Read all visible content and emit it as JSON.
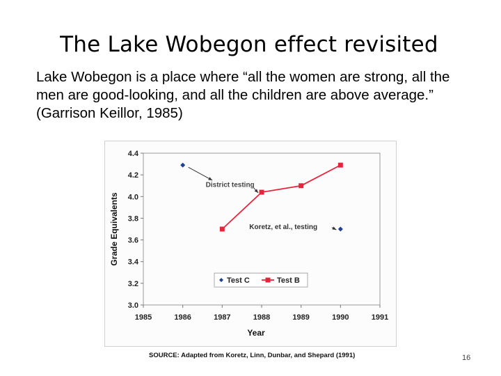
{
  "slide": {
    "title": "The Lake Wobegon effect revisited",
    "body": "Lake Wobegon is a place where “all the women are strong, all the men are good-looking, and all the children are above average.” (Garrison Keillor, 1985)",
    "page_number": "16"
  },
  "chart_data": {
    "type": "line",
    "title": "",
    "xlabel": "Year",
    "ylabel": "Grade Equivalents",
    "x_ticks": [
      "1985",
      "1986",
      "1987",
      "1988",
      "1989",
      "1990",
      "1991"
    ],
    "y_ticks": [
      "3.0",
      "3.2",
      "3.4",
      "3.6",
      "3.8",
      "4.0",
      "4.2",
      "4.4"
    ],
    "xlim": [
      1985,
      1991
    ],
    "ylim": [
      3.0,
      4.4
    ],
    "grid": false,
    "legend_position": "bottom-center",
    "series": [
      {
        "name": "Test C",
        "color": "#1f3f8f",
        "marker": "diamond",
        "line": false,
        "points": [
          {
            "x": 1986,
            "y": 4.29
          },
          {
            "x": 1990,
            "y": 3.7
          }
        ]
      },
      {
        "name": "Test B",
        "color": "#e8243c",
        "marker": "square",
        "line": true,
        "points": [
          {
            "x": 1987,
            "y": 3.7
          },
          {
            "x": 1988,
            "y": 4.04
          },
          {
            "x": 1989,
            "y": 4.1
          },
          {
            "x": 1990,
            "y": 4.29
          }
        ]
      }
    ],
    "annotations": [
      {
        "text": "District testing",
        "points_to": {
          "x": 1988,
          "y": 4.04
        }
      },
      {
        "text": "Koretz, et al., testing",
        "points_to": {
          "x": 1990,
          "y": 3.7
        }
      }
    ],
    "source": "SOURCE: Adapted from Koretz, Linn, Dunbar, and Shepard (1991)"
  }
}
